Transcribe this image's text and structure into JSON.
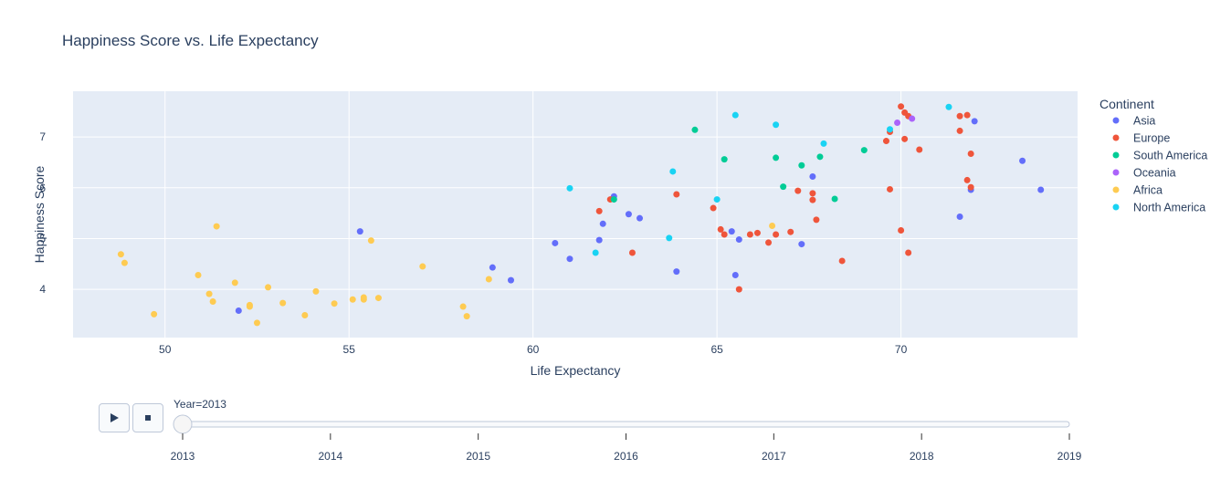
{
  "chart_data": {
    "type": "scatter",
    "title": "Happiness Score vs. Life Expectancy",
    "xlabel": "Life Expectancy",
    "ylabel": "Happiness Score",
    "xlim": [
      47.5,
      74.8
    ],
    "ylim": [
      3.05,
      7.9
    ],
    "xticks": [
      50,
      55,
      60,
      65,
      70
    ],
    "yticks": [
      4,
      5,
      6,
      7
    ],
    "grid": true,
    "legend_title": "Continent",
    "legend_position": "right",
    "series": [
      {
        "name": "Asia",
        "color": "#636efa",
        "points": [
          [
            52,
            3.58
          ],
          [
            55.3,
            5.14
          ],
          [
            58.9,
            4.43
          ],
          [
            59.4,
            4.18
          ],
          [
            60.6,
            4.91
          ],
          [
            61,
            4.6
          ],
          [
            61.8,
            4.97
          ],
          [
            61.9,
            5.29
          ],
          [
            62.2,
            5.83
          ],
          [
            62.6,
            5.48
          ],
          [
            62.9,
            5.4
          ],
          [
            63.9,
            4.35
          ],
          [
            65.5,
            4.28
          ],
          [
            65.6,
            4.98
          ],
          [
            65.4,
            5.14
          ],
          [
            67.3,
            4.89
          ],
          [
            67.6,
            6.22
          ],
          [
            71.6,
            5.43
          ],
          [
            71.9,
            5.96
          ],
          [
            72,
            7.31
          ],
          [
            73.3,
            6.53
          ],
          [
            73.8,
            5.96
          ]
        ]
      },
      {
        "name": "Europe",
        "color": "#ef553b",
        "points": [
          [
            61.8,
            5.54
          ],
          [
            62.1,
            5.77
          ],
          [
            62.7,
            4.72
          ],
          [
            63.9,
            5.87
          ],
          [
            64.9,
            5.6
          ],
          [
            65.1,
            5.18
          ],
          [
            65.2,
            5.08
          ],
          [
            65.6,
            4.0
          ],
          [
            65.9,
            5.08
          ],
          [
            66.1,
            5.11
          ],
          [
            66.4,
            4.92
          ],
          [
            66.6,
            5.08
          ],
          [
            67,
            5.13
          ],
          [
            67.2,
            5.94
          ],
          [
            67.6,
            5.76
          ],
          [
            67.6,
            5.89
          ],
          [
            67.7,
            5.37
          ],
          [
            68.4,
            4.56
          ],
          [
            69.6,
            6.92
          ],
          [
            69.7,
            5.97
          ],
          [
            69.7,
            7.1
          ],
          [
            70,
            7.6
          ],
          [
            70.1,
            7.48
          ],
          [
            70.1,
            6.96
          ],
          [
            70,
            5.16
          ],
          [
            70.2,
            7.41
          ],
          [
            70.2,
            4.72
          ],
          [
            70.5,
            6.75
          ],
          [
            71.6,
            7.41
          ],
          [
            71.6,
            7.12
          ],
          [
            71.8,
            7.43
          ],
          [
            71.8,
            6.15
          ],
          [
            71.9,
            6.01
          ],
          [
            71.9,
            6.67
          ]
        ]
      },
      {
        "name": "South America",
        "color": "#00cc96",
        "points": [
          [
            62.2,
            5.77
          ],
          [
            64.4,
            7.14
          ],
          [
            65.2,
            6.56
          ],
          [
            66.6,
            6.59
          ],
          [
            66.8,
            6.02
          ],
          [
            67.3,
            6.44
          ],
          [
            67.8,
            6.61
          ],
          [
            68.2,
            5.78
          ],
          [
            69,
            6.74
          ]
        ]
      },
      {
        "name": "Oceania",
        "color": "#ab63fa",
        "points": [
          [
            69.9,
            7.28
          ],
          [
            70.3,
            7.36
          ]
        ]
      },
      {
        "name": "Africa",
        "color": "#fecb52",
        "points": [
          [
            48.8,
            4.69
          ],
          [
            48.9,
            4.52
          ],
          [
            49.7,
            3.51
          ],
          [
            50.9,
            4.28
          ],
          [
            51.2,
            3.91
          ],
          [
            51.3,
            3.76
          ],
          [
            51.4,
            5.24
          ],
          [
            51.9,
            4.13
          ],
          [
            52.3,
            3.69
          ],
          [
            52.3,
            3.66
          ],
          [
            52.5,
            3.34
          ],
          [
            52.8,
            4.04
          ],
          [
            53.2,
            3.73
          ],
          [
            53.8,
            3.49
          ],
          [
            54.1,
            3.96
          ],
          [
            54.6,
            3.72
          ],
          [
            55.1,
            3.8
          ],
          [
            55.4,
            3.84
          ],
          [
            55.4,
            3.8
          ],
          [
            55.6,
            4.96
          ],
          [
            55.8,
            3.83
          ],
          [
            57,
            4.45
          ],
          [
            58.1,
            3.66
          ],
          [
            58.2,
            3.47
          ],
          [
            58.8,
            4.2
          ],
          [
            66.5,
            5.25
          ]
        ]
      },
      {
        "name": "North America",
        "color": "#19d3f3",
        "points": [
          [
            61,
            5.99
          ],
          [
            61.7,
            4.72
          ],
          [
            63.7,
            5.01
          ],
          [
            63.8,
            6.32
          ],
          [
            65,
            5.77
          ],
          [
            65.5,
            7.43
          ],
          [
            66.6,
            7.24
          ],
          [
            67.9,
            6.87
          ],
          [
            69.7,
            7.15
          ],
          [
            71.3,
            7.59
          ]
        ]
      }
    ],
    "slider": {
      "label": "Year=2013",
      "ticks": [
        "2013",
        "2014",
        "2015",
        "2016",
        "2017",
        "2018",
        "2019"
      ],
      "value": 2013
    }
  },
  "controls": {
    "play_icon": "play-icon",
    "stop_icon": "stop-icon"
  }
}
